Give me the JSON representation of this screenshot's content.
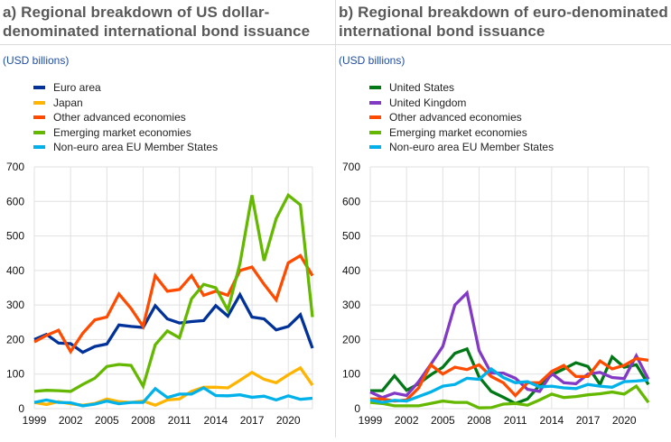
{
  "chart_data": [
    {
      "type": "line",
      "title": "a) Regional breakdown of US dollar-denominated international bond issuance",
      "title_lines": [
        "a) Regional breakdown of US dollar-",
        "denominated international bond issuance"
      ],
      "unit_label": "(USD billions)",
      "xlabel": "",
      "ylabel": "",
      "ylim": [
        0,
        700
      ],
      "yticks": [
        0,
        100,
        200,
        300,
        400,
        500,
        600,
        700
      ],
      "xtick_labels": [
        "1999",
        "2002",
        "2005",
        "2008",
        "2011",
        "2014",
        "2017",
        "2020"
      ],
      "grid": true,
      "legend_position": "top-left",
      "x": [
        1999,
        2000,
        2001,
        2002,
        2003,
        2004,
        2005,
        2006,
        2007,
        2008,
        2009,
        2010,
        2011,
        2012,
        2013,
        2014,
        2015,
        2016,
        2017,
        2018,
        2019,
        2020,
        2021,
        2022
      ],
      "series": [
        {
          "name": "Euro area",
          "color": "#003299",
          "values": [
            200,
            215,
            190,
            188,
            163,
            180,
            187,
            242,
            238,
            235,
            298,
            260,
            248,
            252,
            255,
            298,
            268,
            330,
            265,
            260,
            228,
            238,
            272,
            175
          ]
        },
        {
          "name": "Japan",
          "color": "#ffb400",
          "values": [
            18,
            12,
            20,
            14,
            10,
            15,
            28,
            20,
            18,
            22,
            10,
            25,
            28,
            50,
            62,
            62,
            60,
            82,
            105,
            85,
            75,
            98,
            118,
            68
          ]
        },
        {
          "name": "Other advanced economies",
          "color": "#ff4b00",
          "values": [
            193,
            212,
            227,
            165,
            218,
            257,
            265,
            332,
            290,
            238,
            385,
            340,
            345,
            385,
            328,
            340,
            328,
            400,
            410,
            360,
            315,
            422,
            443,
            385
          ]
        },
        {
          "name": "Emerging market economies",
          "color": "#65b800",
          "values": [
            50,
            53,
            52,
            50,
            70,
            88,
            122,
            128,
            125,
            65,
            185,
            225,
            205,
            318,
            360,
            350,
            285,
            420,
            618,
            428,
            550,
            618,
            590,
            265
          ]
        },
        {
          "name": "Non-euro area EU Member States",
          "color": "#00b1ea",
          "values": [
            18,
            25,
            18,
            17,
            8,
            13,
            22,
            14,
            18,
            18,
            58,
            32,
            42,
            42,
            60,
            38,
            37,
            40,
            33,
            36,
            25,
            37,
            27,
            30
          ]
        }
      ]
    },
    {
      "type": "line",
      "title": "b) Regional breakdown of euro-denominated international bond issuance",
      "title_lines": [
        "b) Regional breakdown of euro-denominated",
        "international bond issuance"
      ],
      "unit_label": "(USD billions)",
      "xlabel": "",
      "ylabel": "",
      "ylim": [
        0,
        700
      ],
      "yticks": [
        0,
        100,
        200,
        300,
        400,
        500,
        600,
        700
      ],
      "xtick_labels": [
        "1999",
        "2002",
        "2005",
        "2008",
        "2011",
        "2014",
        "2017",
        "2020"
      ],
      "grid": true,
      "legend_position": "top-left",
      "x": [
        1999,
        2000,
        2001,
        2002,
        2003,
        2004,
        2005,
        2006,
        2007,
        2008,
        2009,
        2010,
        2011,
        2012,
        2013,
        2014,
        2015,
        2016,
        2017,
        2018,
        2019,
        2020,
        2021,
        2022
      ],
      "series": [
        {
          "name": "United States",
          "color": "#007816",
          "values": [
            52,
            52,
            95,
            53,
            72,
            98,
            120,
            160,
            173,
            92,
            50,
            33,
            15,
            28,
            68,
            98,
            115,
            133,
            122,
            70,
            150,
            120,
            127,
            70
          ]
        },
        {
          "name": "United Kingdom",
          "color": "#8139c6",
          "values": [
            48,
            32,
            45,
            38,
            78,
            128,
            180,
            300,
            335,
            168,
            103,
            103,
            88,
            56,
            50,
            102,
            75,
            72,
            100,
            105,
            90,
            87,
            153,
            85
          ]
        },
        {
          "name": "Other advanced economies",
          "color": "#ff4b00",
          "values": [
            28,
            28,
            22,
            25,
            60,
            127,
            100,
            120,
            113,
            127,
            93,
            75,
            38,
            75,
            75,
            108,
            125,
            93,
            93,
            138,
            115,
            125,
            145,
            140
          ]
        },
        {
          "name": "Emerging market economies",
          "color": "#65b800",
          "values": [
            18,
            15,
            8,
            8,
            8,
            15,
            22,
            18,
            18,
            2,
            3,
            13,
            15,
            10,
            25,
            42,
            32,
            35,
            40,
            43,
            48,
            42,
            65,
            18
          ]
        },
        {
          "name": "Non-euro area EU Member States",
          "color": "#00b1ea",
          "values": [
            25,
            18,
            24,
            22,
            35,
            48,
            65,
            70,
            88,
            85,
            115,
            90,
            75,
            78,
            63,
            65,
            60,
            58,
            70,
            65,
            62,
            78,
            80,
            83
          ]
        }
      ]
    }
  ]
}
